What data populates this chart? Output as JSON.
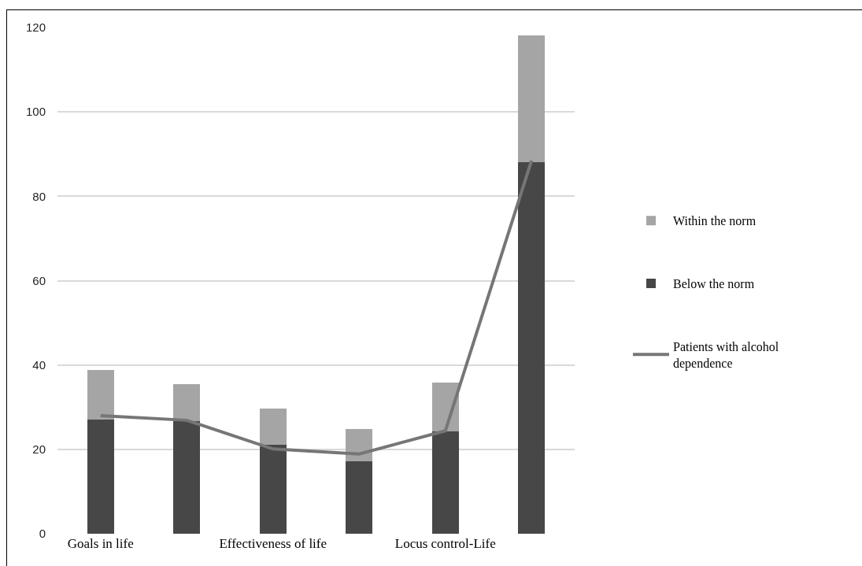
{
  "chart_data": {
    "type": "bar",
    "categories": [
      "Goals in life",
      null,
      "Effectiveness of life",
      null,
      "Locus control-Life",
      null
    ],
    "stacked": true,
    "series": [
      {
        "name": "Below the norm",
        "color": "#474747",
        "values": [
          27.0,
          26.6,
          21.1,
          17.2,
          24.2,
          88.0
        ]
      },
      {
        "name": "Within the norm",
        "color": "#a5a5a5",
        "values": [
          11.8,
          8.8,
          8.6,
          7.7,
          11.6,
          30.1
        ]
      },
      {
        "name": "Patients with alcohol dependence",
        "type": "line",
        "color": "#767676",
        "values": [
          28.0,
          26.9,
          20.1,
          18.9,
          24.4,
          88.5
        ]
      }
    ],
    "ylim": [
      0,
      120
    ],
    "yticks": [
      0,
      20,
      40,
      60,
      80,
      100,
      120
    ],
    "grid": "y",
    "legend": "right",
    "marker": "none"
  }
}
